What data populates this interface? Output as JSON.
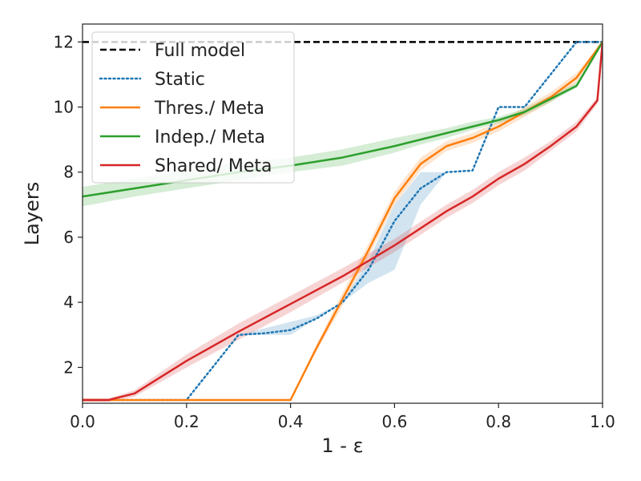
{
  "chart_data": {
    "type": "line",
    "xlabel": "1 - ε",
    "ylabel": "Layers",
    "xlim": [
      0.0,
      1.0
    ],
    "ylim": [
      0.9,
      12.55
    ],
    "x_ticks": [
      0.0,
      0.2,
      0.4,
      0.6,
      0.8,
      1.0
    ],
    "x_tick_labels": [
      "0.0",
      "0.2",
      "0.4",
      "0.6",
      "0.8",
      "1.0"
    ],
    "y_ticks": [
      2,
      4,
      6,
      8,
      10,
      12
    ],
    "y_tick_labels": [
      "2",
      "4",
      "6",
      "8",
      "10",
      "12"
    ],
    "grid": false,
    "legend_position": "top-left",
    "series": [
      {
        "name": "Full model",
        "color": "#000000",
        "style": "dashed",
        "x": [
          0.0,
          1.0
        ],
        "y": [
          12,
          12
        ]
      },
      {
        "name": "Static",
        "color": "#1f77b4",
        "style": "dotted",
        "x": [
          0.0,
          0.05,
          0.1,
          0.15,
          0.2,
          0.25,
          0.3,
          0.35,
          0.4,
          0.45,
          0.5,
          0.55,
          0.6,
          0.65,
          0.7,
          0.75,
          0.8,
          0.85,
          0.9,
          0.95,
          1.0
        ],
        "y": [
          1,
          1,
          1,
          1,
          1,
          2,
          3,
          3.05,
          3.15,
          3.5,
          4,
          5,
          6.5,
          7.5,
          8,
          8.05,
          10,
          10,
          11,
          12,
          12
        ],
        "band_lower": [
          1,
          1,
          1,
          1,
          1,
          2,
          3,
          3,
          3,
          3.5,
          4,
          4.6,
          5,
          7,
          8,
          8.05,
          10,
          10,
          11,
          12,
          12
        ],
        "band_upper": [
          1,
          1,
          1,
          1,
          1,
          2,
          3,
          3.2,
          3.4,
          3.6,
          4,
          5.3,
          7,
          8,
          8,
          8.05,
          10,
          10,
          11,
          12,
          12
        ]
      },
      {
        "name": "Thres./ Meta",
        "color": "#ff7f0e",
        "style": "solid",
        "x": [
          0.0,
          0.05,
          0.1,
          0.15,
          0.2,
          0.25,
          0.3,
          0.35,
          0.4,
          0.45,
          0.5,
          0.55,
          0.6,
          0.65,
          0.7,
          0.75,
          0.8,
          0.85,
          0.9,
          0.95,
          1.0
        ],
        "y": [
          1,
          1,
          1,
          1,
          1,
          1,
          1,
          1,
          1,
          2.6,
          4.1,
          5.6,
          7.2,
          8.25,
          8.8,
          9.05,
          9.4,
          9.85,
          10.3,
          10.9,
          12
        ],
        "band_lower": [
          1,
          1,
          1,
          1,
          1,
          1,
          1,
          1,
          1,
          2.5,
          3.9,
          5.4,
          7.0,
          8.05,
          8.65,
          8.9,
          9.25,
          9.7,
          10.15,
          10.75,
          12
        ],
        "band_upper": [
          1,
          1,
          1,
          1,
          1,
          1,
          1,
          1,
          1,
          2.7,
          4.3,
          5.8,
          7.4,
          8.45,
          8.95,
          9.2,
          9.55,
          10.0,
          10.45,
          11.05,
          12
        ]
      },
      {
        "name": "Indep./ Meta",
        "color": "#2ca02c",
        "style": "solid",
        "x": [
          0.0,
          0.1,
          0.2,
          0.3,
          0.4,
          0.5,
          0.6,
          0.65,
          0.7,
          0.75,
          0.8,
          0.85,
          0.9,
          0.95,
          1.0
        ],
        "y": [
          7.25,
          7.5,
          7.75,
          8.0,
          8.2,
          8.45,
          8.8,
          9.0,
          9.2,
          9.4,
          9.6,
          9.85,
          10.25,
          10.65,
          12
        ],
        "band_lower": [
          6.95,
          7.25,
          7.5,
          7.75,
          8.0,
          8.2,
          8.6,
          8.85,
          9.05,
          9.3,
          9.5,
          9.75,
          10.15,
          10.6,
          12
        ],
        "band_upper": [
          7.55,
          7.8,
          8.05,
          8.3,
          8.45,
          8.7,
          9.05,
          9.2,
          9.35,
          9.55,
          9.7,
          9.95,
          10.35,
          10.75,
          12
        ]
      },
      {
        "name": "Shared/ Meta",
        "color": "#d62728",
        "style": "solid",
        "x": [
          0.0,
          0.05,
          0.1,
          0.2,
          0.3,
          0.4,
          0.5,
          0.6,
          0.7,
          0.75,
          0.8,
          0.85,
          0.9,
          0.95,
          0.99,
          1.0
        ],
        "y": [
          1,
          1,
          1.2,
          2.2,
          3.1,
          3.95,
          4.8,
          5.75,
          6.8,
          7.25,
          7.8,
          8.25,
          8.8,
          9.4,
          10.2,
          12
        ],
        "band_lower": [
          0.95,
          0.95,
          1.1,
          2.0,
          2.85,
          3.7,
          4.6,
          5.55,
          6.6,
          7.05,
          7.6,
          8.05,
          8.65,
          9.25,
          10.1,
          12
        ],
        "band_upper": [
          1.05,
          1.05,
          1.3,
          2.4,
          3.35,
          4.2,
          5.05,
          5.95,
          7.0,
          7.45,
          8.0,
          8.45,
          8.95,
          9.55,
          10.3,
          12
        ]
      }
    ]
  }
}
